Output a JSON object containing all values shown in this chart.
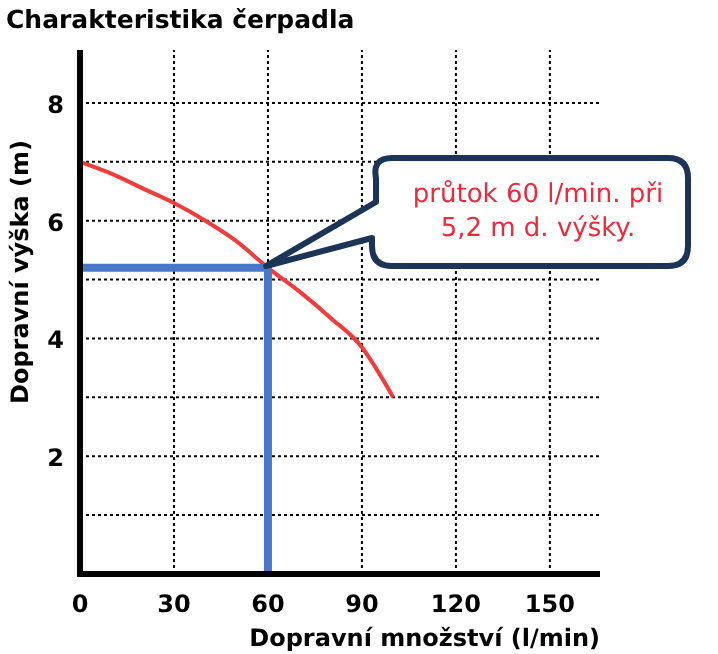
{
  "chart_data": {
    "type": "line",
    "title": "Charakteristika čerpadla",
    "xlabel": "Dopravní množství (l/min)",
    "ylabel": "Dopravní výška (m)",
    "xlim": [
      0,
      166
    ],
    "xticks": [
      0,
      30,
      60,
      90,
      120,
      150
    ],
    "ylim": [
      0,
      8.9
    ],
    "yticks": [
      {
        "value": 0,
        "label": null
      },
      {
        "value": 1,
        "label": null
      },
      2,
      {
        "value": 3,
        "label": null
      },
      4,
      {
        "value": 5,
        "label": null
      },
      6,
      {
        "value": 7,
        "label": null
      },
      8
    ],
    "grid": true,
    "marker": "none",
    "series": [
      {
        "color": "#f03c3c",
        "x": [
          0,
          10,
          20,
          30,
          40,
          50,
          60,
          70,
          80,
          90,
          95,
          100
        ],
        "values": [
          7,
          6.8,
          6.55,
          6.3,
          6.0,
          5.65,
          5.2,
          4.8,
          4.35,
          3.85,
          3.45,
          3.0
        ]
      },
      {
        "color": "#4a78c8",
        "x": [
          0,
          60,
          60
        ],
        "values": [
          5.2,
          5.2,
          0
        ]
      }
    ],
    "annotations": [
      "průtok 60 l/min. při 5,2 m d. výšky."
    ]
  }
}
